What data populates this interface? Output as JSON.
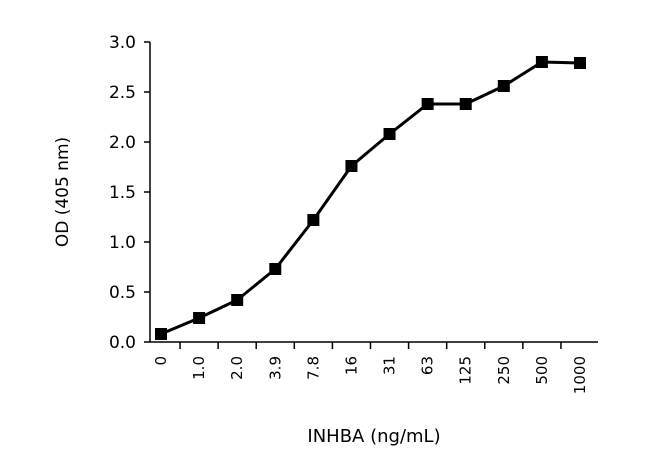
{
  "chart_data": {
    "type": "line",
    "title": "",
    "xlabel": "INHBA (ng/mL)",
    "ylabel": "OD (405 nm)",
    "categories": [
      "0",
      "1.0",
      "2.0",
      "3.9",
      "7.8",
      "16",
      "31",
      "63",
      "125",
      "250",
      "500",
      "1000"
    ],
    "series": [
      {
        "values": [
          0.08,
          0.24,
          0.42,
          0.73,
          1.22,
          1.76,
          2.08,
          2.38,
          2.38,
          2.56,
          2.8,
          2.79
        ]
      }
    ],
    "ylim": [
      0,
      3.0
    ],
    "yticks": [
      "0.0",
      "0.5",
      "1.0",
      "1.5",
      "2.0",
      "2.5",
      "3.0"
    ],
    "grid": false,
    "legend": "none",
    "colors": {
      "line": "#000000",
      "marker": "#000000",
      "axis": "#000000"
    }
  }
}
